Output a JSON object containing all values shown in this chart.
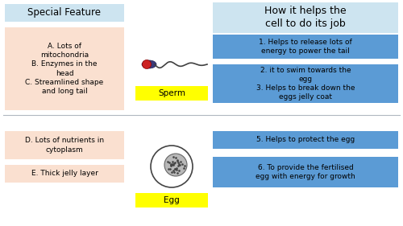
{
  "title_left": "Special Feature",
  "title_right": "How it helps the\ncell to do its job",
  "title_left_bg": "#cde4f0",
  "title_right_bg": "#cde4f0",
  "sperm_feature_text": "A. Lots of\nmitochondria\nB. Enzymes in the\nhead\nC. Streamlined shape\nand long tail",
  "sperm_feature_bg": "#fae0d0",
  "sperm_label": "Sperm",
  "sperm_label_bg": "#ffff00",
  "sperm_box1_text": "1. Helps to release lots of\nenergy to power the tail",
  "sperm_box2_text": "2. it to swim towards the\negg\n3. Helps to break down the\neggs jelly coat",
  "sperm_box_bg": "#5b9bd5",
  "egg_feature1_text": "D. Lots of nutrients in\ncytoplasm",
  "egg_feature2_text": "E. Thick jelly layer",
  "egg_feature_bg": "#fae0d0",
  "egg_label": "Egg",
  "egg_label_bg": "#ffff00",
  "egg_box1_text": "5. Helps to protect the egg",
  "egg_box2_text": "6. To provide the fertilised\negg with energy for growth",
  "egg_box_bg": "#5b9bd5",
  "bg_color": "#ffffff",
  "divider_color": "#b0b8c0",
  "text_color": "#000000"
}
